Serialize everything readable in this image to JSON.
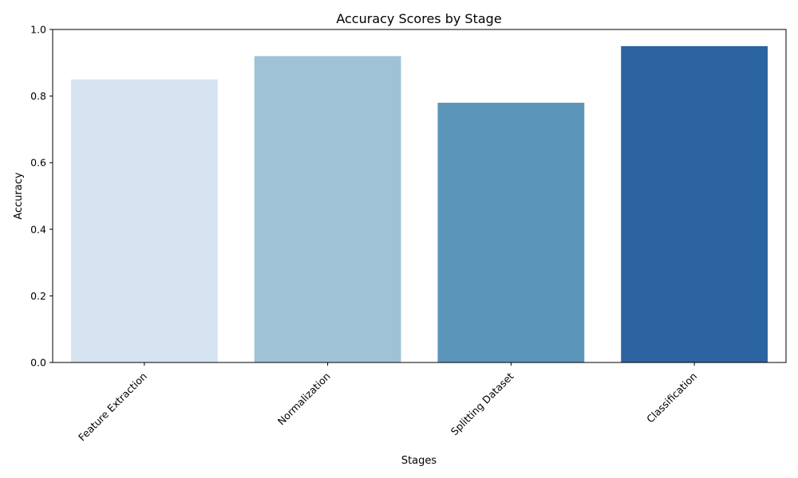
{
  "chart_data": {
    "type": "bar",
    "title": "Accuracy Scores by Stage",
    "xlabel": "Stages",
    "ylabel": "Accuracy",
    "categories": [
      "Feature Extraction",
      "Normalization",
      "Splitting Dataset",
      "Classification"
    ],
    "values": [
      0.85,
      0.92,
      0.78,
      0.95
    ],
    "colors": [
      "#d6e3f0",
      "#9fc2d6",
      "#5c95ba",
      "#2b64a0"
    ],
    "ylim": [
      0,
      1.0
    ],
    "yticks": [
      "0.0",
      "0.2",
      "0.4",
      "0.6",
      "0.8",
      "1.0"
    ],
    "grid": false,
    "legend": "none"
  }
}
